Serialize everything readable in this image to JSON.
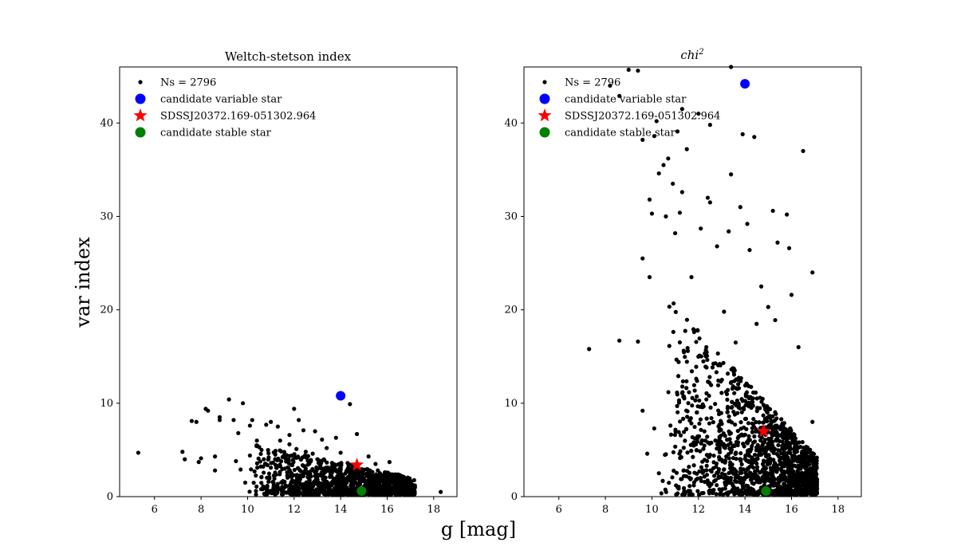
{
  "figure": {
    "xlabel": "g [mag]",
    "ylabel": "var index"
  },
  "colors": {
    "background": "#ffffff",
    "points": "#000000",
    "variable": "#0000ff",
    "target": "#ff0000",
    "stable": "#008000"
  },
  "chart_data": [
    {
      "type": "scatter",
      "title": "Weltch-stetson index",
      "title_style": "normal",
      "xlim": [
        4.5,
        19
      ],
      "ylim": [
        0,
        46
      ],
      "xticks": [
        6,
        8,
        10,
        12,
        14,
        16,
        18
      ],
      "yticks": [
        0,
        10,
        20,
        30,
        40
      ],
      "legend_position": "top-left",
      "series": [
        {
          "name": "Ns = 2796",
          "marker": "dot",
          "color": "#000000",
          "points": [
            [
              5.3,
              4.7
            ],
            [
              7.2,
              4.8
            ],
            [
              7.3,
              4.0
            ],
            [
              7.6,
              8.1
            ],
            [
              7.8,
              8.0
            ],
            [
              7.9,
              3.7
            ],
            [
              8.0,
              4.1
            ],
            [
              8.2,
              9.4
            ],
            [
              8.3,
              9.2
            ],
            [
              8.6,
              4.3
            ],
            [
              8.6,
              2.8
            ],
            [
              8.8,
              8.5
            ],
            [
              8.8,
              8.2
            ],
            [
              9.2,
              10.4
            ],
            [
              9.4,
              8.2
            ],
            [
              9.6,
              6.8
            ],
            [
              9.8,
              10.0
            ],
            [
              10.2,
              8.2
            ],
            [
              10.1,
              7.6
            ],
            [
              10.4,
              6.0
            ],
            [
              10.8,
              7.7
            ],
            [
              10.6,
              5.0
            ],
            [
              11.0,
              8.0
            ],
            [
              11.3,
              7.5
            ],
            [
              11.4,
              6.0
            ],
            [
              11.8,
              6.6
            ],
            [
              12.0,
              9.4
            ],
            [
              12.2,
              8.2
            ],
            [
              12.4,
              7.1
            ],
            [
              12.9,
              7.0
            ],
            [
              13.2,
              6.1
            ],
            [
              13.4,
              5.2
            ],
            [
              13.8,
              6.3
            ],
            [
              14.4,
              9.9
            ],
            [
              14.7,
              6.7
            ],
            [
              9.5,
              3.8
            ],
            [
              9.7,
              2.9
            ],
            [
              9.9,
              1.5
            ],
            [
              10.1,
              4.4
            ],
            [
              10.6,
              2.1
            ],
            [
              10.9,
              1.6
            ],
            [
              11.2,
              0.8
            ],
            [
              11.6,
              3.0
            ],
            [
              15.2,
              4.3
            ],
            [
              15.5,
              3.5
            ],
            [
              16.1,
              3.7
            ],
            [
              18.3,
              0.5
            ],
            [
              17.0,
              1.6
            ],
            [
              16.8,
              1.9
            ],
            [
              16.6,
              1.3
            ],
            [
              16.2,
              1.5
            ],
            [
              15.8,
              0.9
            ],
            [
              15.6,
              1.7
            ],
            [
              15.3,
              2.3
            ],
            [
              15.1,
              1.1
            ],
            [
              14.8,
              2.6
            ],
            [
              14.6,
              1.4
            ],
            [
              14.3,
              3.6
            ],
            [
              14.1,
              2.1
            ],
            [
              13.9,
              1.0
            ],
            [
              13.6,
              2.7
            ],
            [
              13.4,
              1.6
            ],
            [
              13.1,
              3.5
            ],
            [
              12.9,
              2.2
            ],
            [
              12.6,
              1.2
            ],
            [
              12.4,
              3.3
            ],
            [
              12.2,
              2.0
            ],
            [
              11.9,
              4.4
            ],
            [
              11.7,
              2.6
            ],
            [
              11.5,
              1.5
            ],
            [
              11.2,
              4.9
            ],
            [
              11.0,
              3.1
            ],
            [
              10.7,
              4.0
            ],
            [
              10.5,
              5.3
            ],
            [
              10.3,
              2.7
            ],
            [
              11.8,
              5.6
            ],
            [
              12.1,
              5.1
            ],
            [
              12.5,
              4.8
            ],
            [
              12.8,
              4.6
            ],
            [
              13.0,
              4.0
            ],
            [
              13.3,
              3.9
            ],
            [
              13.7,
              3.0
            ],
            [
              14.0,
              4.7
            ],
            [
              14.5,
              3.0
            ],
            [
              16.4,
              2.1
            ],
            [
              17.1,
              1.2
            ],
            [
              16.9,
              0.7
            ],
            [
              15.9,
              2.6
            ],
            [
              15.4,
              1.3
            ]
          ]
        },
        {
          "name": "candidate variable star",
          "marker": "circle",
          "color": "#0000ff",
          "points": [
            [
              14.0,
              10.8
            ]
          ]
        },
        {
          "name": "SDSSJ20372.169-051302.964",
          "marker": "star",
          "color": "#ff0000",
          "points": [
            [
              14.7,
              3.4
            ]
          ]
        },
        {
          "name": "candidate stable star",
          "marker": "circle",
          "color": "#008000",
          "points": [
            [
              14.9,
              0.6
            ]
          ]
        }
      ],
      "clusters": [
        {
          "x_range": [
            10.0,
            17.2
          ],
          "y_max_left": 5.5,
          "y_max_right": 1.8,
          "count": 1200,
          "seed": 7
        }
      ]
    },
    {
      "type": "scatter",
      "title": "chi",
      "title_sup": "2",
      "title_style": "italic",
      "xlim": [
        4.5,
        19
      ],
      "ylim": [
        0,
        46
      ],
      "xticks": [
        6,
        8,
        10,
        12,
        14,
        16,
        18
      ],
      "yticks": [
        0,
        10,
        20,
        30,
        40
      ],
      "legend_position": "top-left",
      "series": [
        {
          "name": "Ns = 2796",
          "marker": "dot",
          "color": "#000000",
          "points": [
            [
              7.3,
              15.8
            ],
            [
              8.6,
              16.7
            ],
            [
              9.4,
              16.6
            ],
            [
              9.6,
              9.2
            ],
            [
              9.6,
              25.5
            ],
            [
              9.9,
              23.5
            ],
            [
              9.9,
              31.8
            ],
            [
              10.0,
              30.3
            ],
            [
              10.2,
              40.2
            ],
            [
              10.3,
              34.6
            ],
            [
              10.5,
              35.5
            ],
            [
              10.7,
              36.2
            ],
            [
              10.9,
              33.5
            ],
            [
              11.1,
              39.1
            ],
            [
              11.3,
              41.5
            ],
            [
              11.3,
              32.6
            ],
            [
              11.5,
              37.2
            ],
            [
              11.7,
              23.5
            ],
            [
              12.1,
              28.7
            ],
            [
              12.4,
              32.0
            ],
            [
              12.5,
              31.5
            ],
            [
              12.5,
              39.8
            ],
            [
              13.1,
              19.8
            ],
            [
              13.3,
              28.4
            ],
            [
              13.4,
              34.5
            ],
            [
              13.8,
              31.0
            ],
            [
              13.9,
              38.8
            ],
            [
              14.1,
              29.2
            ],
            [
              14.2,
              26.4
            ],
            [
              14.4,
              38.5
            ],
            [
              14.7,
              22.5
            ],
            [
              15.2,
              30.6
            ],
            [
              15.4,
              27.2
            ],
            [
              15.8,
              30.2
            ],
            [
              15.9,
              26.6
            ],
            [
              16.0,
              21.6
            ],
            [
              16.5,
              37.0
            ],
            [
              16.9,
              24.0
            ],
            [
              8.6,
              42.9
            ],
            [
              9.0,
              45.7
            ],
            [
              9.4,
              45.6
            ],
            [
              13.4,
              46.0
            ],
            [
              8.2,
              44.0
            ],
            [
              9.6,
              38.2
            ],
            [
              10.1,
              38.6
            ],
            [
              10.6,
              30.0
            ],
            [
              11.0,
              28.2
            ],
            [
              11.2,
              30.4
            ],
            [
              12.0,
              41.0
            ],
            [
              12.8,
              26.8
            ],
            [
              13.6,
              16.5
            ],
            [
              14.5,
              18.5
            ],
            [
              15.0,
              20.3
            ],
            [
              15.3,
              18.9
            ],
            [
              16.3,
              16.0
            ],
            [
              16.9,
              8.0
            ],
            [
              10.1,
              7.3
            ],
            [
              9.8,
              4.6
            ],
            [
              10.3,
              2.5
            ]
          ]
        },
        {
          "name": "candidate variable star",
          "marker": "circle",
          "color": "#0000ff",
          "points": [
            [
              14.0,
              44.2
            ]
          ]
        },
        {
          "name": "SDSSJ20372.169-051302.964",
          "marker": "star",
          "color": "#ff0000",
          "points": [
            [
              14.8,
              7.0
            ]
          ]
        },
        {
          "name": "candidate stable star",
          "marker": "circle",
          "color": "#008000",
          "points": [
            [
              14.9,
              0.6
            ]
          ]
        }
      ],
      "clusters": [
        {
          "x_range": [
            10.4,
            17.1
          ],
          "y_max_left": 22.0,
          "y_max_right": 4.0,
          "count": 1500,
          "seed": 11
        }
      ]
    }
  ]
}
